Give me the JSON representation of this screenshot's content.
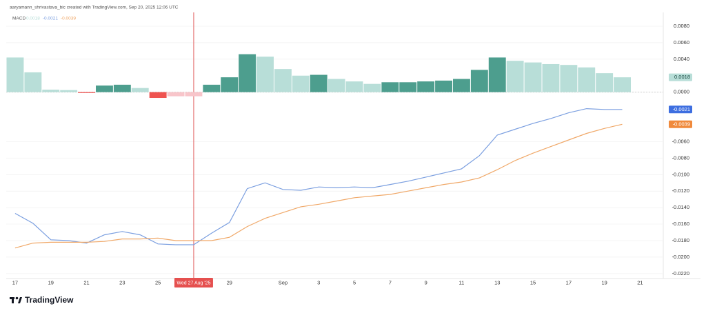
{
  "chart_data": {
    "type": "macd",
    "title": "aaryamann_shrivastava_bic created with TradingView.com, Sep 20, 2025 12:06 UTC",
    "indicator": "MACD",
    "footer": "TradingView",
    "crosshair": true,
    "categories": [
      "17",
      null,
      "19",
      null,
      "21",
      null,
      "23",
      null,
      "25",
      null,
      "Wed 27 Aug '25",
      null,
      "29",
      null,
      null,
      "Sep",
      null,
      "3",
      null,
      "5",
      null,
      "7",
      null,
      "9",
      null,
      "11",
      null,
      "13",
      null,
      "15",
      null,
      "17",
      null,
      "19",
      null,
      "21"
    ],
    "histogram": {
      "name": "Histogram",
      "values": [
        0.0042,
        0.0024,
        0.0003,
        0.00025,
        -0.0001,
        0.0008,
        0.0009,
        0.0005,
        -0.0007,
        -0.0005,
        -0.0005,
        0.0009,
        0.0018,
        0.0046,
        0.0043,
        0.0028,
        0.002,
        0.0021,
        0.0016,
        0.0013,
        0.001,
        0.0012,
        0.0012,
        0.0013,
        0.0014,
        0.0016,
        0.0027,
        0.0042,
        0.0038,
        0.0036,
        0.0034,
        0.0033,
        0.003,
        0.0023,
        0.0018,
        null
      ],
      "colors": [
        "#b8ded8",
        "#b8ded8",
        "#b8ded8",
        "#b8ded8",
        "#ef5350",
        "#4d9e8e",
        "#4d9e8e",
        "#b8ded8",
        "#ef5350",
        "#f8c5ca",
        "#f8c5ca",
        "#4d9e8e",
        "#4d9e8e",
        "#4d9e8e",
        "#b8ded8",
        "#b8ded8",
        "#b8ded8",
        "#4d9e8e",
        "#b8ded8",
        "#b8ded8",
        "#b8ded8",
        "#4d9e8e",
        "#4d9e8e",
        "#4d9e8e",
        "#4d9e8e",
        "#4d9e8e",
        "#4d9e8e",
        "#4d9e8e",
        "#b8ded8",
        "#b8ded8",
        "#b8ded8",
        "#b8ded8",
        "#b8ded8",
        "#b8ded8",
        "#b8ded8",
        null
      ],
      "color": "#b8ded8",
      "last_value_label": "0.0018"
    },
    "series": [
      {
        "name": "MACD",
        "color": "#7b9fe0",
        "last_value_label": "-0.0021",
        "values": [
          -0.0147,
          -0.0159,
          -0.0179,
          -0.018,
          -0.0183,
          -0.0173,
          -0.0169,
          -0.0173,
          -0.0184,
          -0.0185,
          -0.0185,
          -0.0171,
          -0.0158,
          -0.0117,
          -0.011,
          -0.0118,
          -0.0119,
          -0.0115,
          -0.0116,
          -0.0115,
          -0.0116,
          -0.0112,
          -0.0108,
          -0.0103,
          -0.0098,
          -0.0093,
          -0.0077,
          -0.0052,
          -0.0045,
          -0.0038,
          -0.0032,
          -0.0025,
          -0.002,
          -0.0021,
          -0.0021,
          null
        ]
      },
      {
        "name": "Signal",
        "color": "#f0a868",
        "last_value_label": "-0.0039",
        "values": [
          -0.0189,
          -0.0183,
          -0.0182,
          -0.0182,
          -0.0182,
          -0.0181,
          -0.0178,
          -0.0178,
          -0.0177,
          -0.018,
          -0.018,
          -0.018,
          -0.0176,
          -0.0163,
          -0.0153,
          -0.0146,
          -0.0139,
          -0.0136,
          -0.0132,
          -0.0128,
          -0.0126,
          -0.0124,
          -0.012,
          -0.0116,
          -0.0112,
          -0.0109,
          -0.0104,
          -0.0094,
          -0.0083,
          -0.0074,
          -0.0066,
          -0.0058,
          -0.005,
          -0.0044,
          -0.0039,
          null
        ]
      }
    ],
    "ylim": [
      -0.0226,
      0.0095
    ],
    "yticks": [
      {
        "value": 0.008,
        "label": "0.0080"
      },
      {
        "value": 0.006,
        "label": "0.0060"
      },
      {
        "value": 0.004,
        "label": "0.0040"
      },
      {
        "value": 0,
        "label": "0.0000"
      },
      {
        "value": -0.006,
        "label": "-0.0060"
      },
      {
        "value": -0.008,
        "label": "-0.0080"
      },
      {
        "value": -0.01,
        "label": "-0.0100"
      },
      {
        "value": -0.012,
        "label": "-0.0120"
      },
      {
        "value": -0.014,
        "label": "-0.0140"
      },
      {
        "value": -0.016,
        "label": "-0.0160"
      },
      {
        "value": -0.018,
        "label": "-0.0180"
      },
      {
        "value": -0.02,
        "label": "-0.0200"
      },
      {
        "value": -0.022,
        "label": "-0.0220"
      }
    ],
    "grid": true
  }
}
